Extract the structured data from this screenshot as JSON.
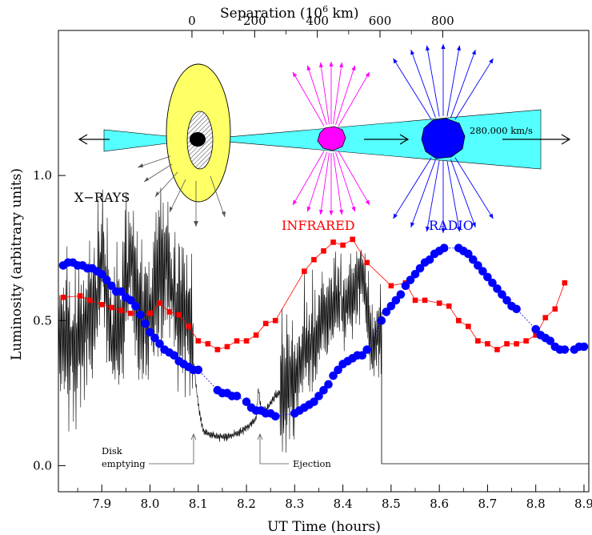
{
  "chart_data": {
    "type": "line",
    "xlabel": "UT Time (hours)",
    "ylabel": "Luminosity  (arbitrary units)",
    "top_axis_label": "Separation  (10",
    "top_axis_label_exp": "6",
    "top_axis_label_tail": " km)",
    "xlim": [
      7.81,
      8.91
    ],
    "ylim": [
      -0.09,
      1.5
    ],
    "x_ticks": [
      "7.9",
      "8.0",
      "8.1",
      "8.2",
      "8.3",
      "8.4",
      "8.5",
      "8.6",
      "8.7",
      "8.8",
      "8.9"
    ],
    "y_ticks": [
      "0.0",
      "0.5",
      "1.0"
    ],
    "top_ticks": [
      "0",
      "200",
      "400",
      "600",
      "800"
    ],
    "grid": false,
    "labels": {
      "xrays": "X−RAYS",
      "infrared": "INFRARED",
      "radio": "RADIO",
      "speed": "280.000 km/s",
      "disk_line1": "Disk",
      "disk_line2": "emptying",
      "ejection": "Ejection"
    },
    "colors": {
      "xray": "#000000",
      "infrared": "#ff0000",
      "radio": "#0000ff",
      "disk": "#ffff66",
      "jet": "#55ffff",
      "ir_blob": "#ff00ff"
    },
    "series": [
      {
        "key": "infrared",
        "marker": "square",
        "x": [
          7.82,
          7.855,
          7.875,
          7.9,
          7.92,
          7.94,
          7.96,
          7.98,
          8.0,
          8.02,
          8.04,
          8.06,
          8.08,
          8.1,
          8.12,
          8.14,
          8.16,
          8.18,
          8.2,
          8.22,
          8.24,
          8.26,
          8.32,
          8.34,
          8.36,
          8.38,
          8.4,
          8.42,
          8.45,
          8.5,
          8.53,
          8.55,
          8.57,
          8.6,
          8.62,
          8.64,
          8.66,
          8.68,
          8.7,
          8.72,
          8.74,
          8.76,
          8.78,
          8.8,
          8.82,
          8.84,
          8.86
        ],
        "values": [
          0.58,
          0.585,
          0.57,
          0.555,
          0.545,
          0.535,
          0.525,
          0.52,
          0.525,
          0.56,
          0.53,
          0.52,
          0.48,
          0.43,
          0.42,
          0.4,
          0.41,
          0.43,
          0.43,
          0.45,
          0.49,
          0.5,
          0.67,
          0.71,
          0.74,
          0.77,
          0.76,
          0.78,
          0.7,
          0.62,
          0.63,
          0.57,
          0.57,
          0.56,
          0.55,
          0.5,
          0.48,
          0.43,
          0.42,
          0.4,
          0.42,
          0.42,
          0.43,
          0.45,
          0.51,
          0.54,
          0.63
        ]
      },
      {
        "key": "radio",
        "marker": "circle",
        "x": [
          7.82,
          7.83,
          7.84,
          7.85,
          7.86,
          7.87,
          7.88,
          7.89,
          7.9,
          7.91,
          7.92,
          7.93,
          7.94,
          7.95,
          7.96,
          7.97,
          7.98,
          7.99,
          8.0,
          8.01,
          8.02,
          8.03,
          8.04,
          8.05,
          8.06,
          8.07,
          8.08,
          8.09,
          8.1,
          8.14,
          8.15,
          8.16,
          8.17,
          8.18,
          8.2,
          8.21,
          8.22,
          8.23,
          8.24,
          8.25,
          8.26,
          8.3,
          8.31,
          8.32,
          8.33,
          8.34,
          8.35,
          8.36,
          8.37,
          8.38,
          8.39,
          8.4,
          8.41,
          8.42,
          8.43,
          8.44,
          8.45,
          8.48,
          8.49,
          8.5,
          8.51,
          8.52,
          8.53,
          8.54,
          8.55,
          8.56,
          8.57,
          8.58,
          8.59,
          8.6,
          8.61,
          8.64,
          8.65,
          8.66,
          8.67,
          8.68,
          8.69,
          8.7,
          8.71,
          8.72,
          8.73,
          8.74,
          8.75,
          8.76,
          8.8,
          8.81,
          8.82,
          8.83,
          8.84,
          8.85,
          8.86,
          8.88,
          8.89,
          8.9
        ],
        "values": [
          0.69,
          0.7,
          0.7,
          0.69,
          0.69,
          0.68,
          0.68,
          0.67,
          0.66,
          0.64,
          0.62,
          0.6,
          0.6,
          0.58,
          0.57,
          0.55,
          0.52,
          0.49,
          0.46,
          0.44,
          0.42,
          0.4,
          0.39,
          0.38,
          0.36,
          0.35,
          0.34,
          0.33,
          0.33,
          0.26,
          0.25,
          0.25,
          0.24,
          0.24,
          0.22,
          0.2,
          0.19,
          0.19,
          0.18,
          0.18,
          0.17,
          0.18,
          0.19,
          0.2,
          0.21,
          0.22,
          0.24,
          0.26,
          0.28,
          0.31,
          0.33,
          0.35,
          0.36,
          0.37,
          0.38,
          0.38,
          0.4,
          0.5,
          0.53,
          0.55,
          0.57,
          0.59,
          0.62,
          0.64,
          0.66,
          0.68,
          0.7,
          0.71,
          0.73,
          0.74,
          0.75,
          0.75,
          0.74,
          0.73,
          0.71,
          0.69,
          0.67,
          0.65,
          0.63,
          0.61,
          0.59,
          0.57,
          0.55,
          0.54,
          0.47,
          0.45,
          0.44,
          0.43,
          0.41,
          0.4,
          0.4,
          0.4,
          0.41,
          0.41
        ]
      },
      {
        "key": "xray",
        "marker": "none",
        "x": [
          7.81,
          7.83,
          7.85,
          7.87,
          7.89,
          7.9,
          7.92,
          7.94,
          7.96,
          7.98,
          8.0,
          8.02,
          8.04,
          8.06,
          8.08,
          8.085,
          8.09,
          8.1,
          8.11,
          8.12,
          8.14,
          8.16,
          8.18,
          8.2,
          8.22,
          8.225,
          8.23,
          8.24,
          8.26,
          8.28,
          8.3,
          8.32,
          8.34,
          8.36,
          8.38,
          8.4,
          8.42,
          8.44,
          8.46,
          8.47,
          8.48
        ],
        "values": [
          0.43,
          0.45,
          0.4,
          0.5,
          0.56,
          0.76,
          0.41,
          0.5,
          0.74,
          0.49,
          0.52,
          0.7,
          0.65,
          0.5,
          0.54,
          0.44,
          0.36,
          0.21,
          0.12,
          0.11,
          0.1,
          0.1,
          0.11,
          0.13,
          0.16,
          0.27,
          0.19,
          0.19,
          0.24,
          0.27,
          0.3,
          0.37,
          0.41,
          0.5,
          0.55,
          0.54,
          0.58,
          0.68,
          0.42,
          0.43,
          0.48
        ]
      }
    ]
  }
}
